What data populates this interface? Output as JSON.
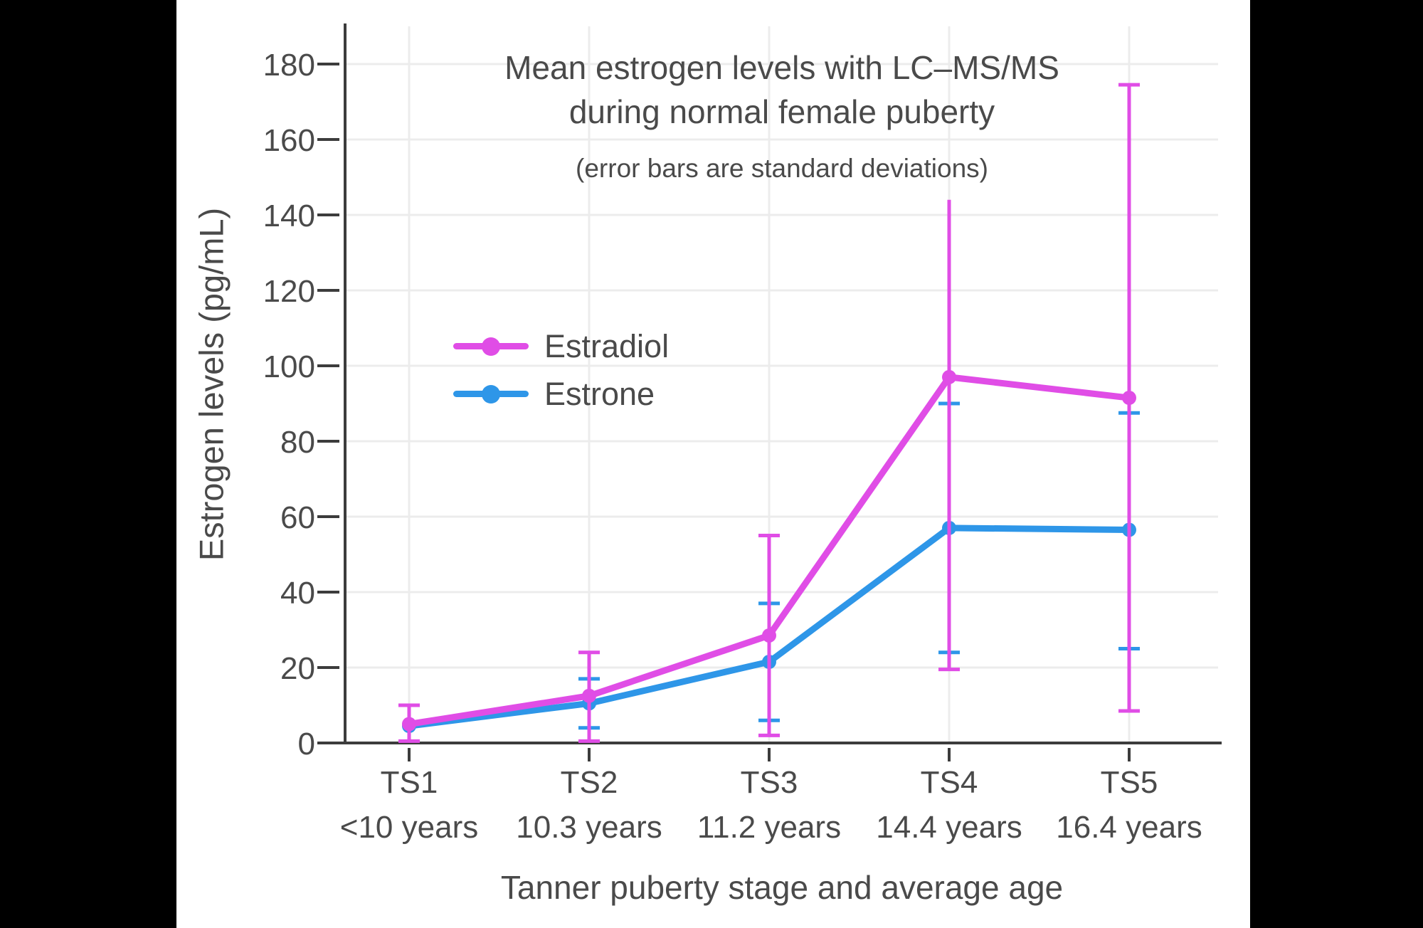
{
  "page": {
    "background_color": "#000000",
    "panel_color": "#ffffff"
  },
  "chart_data": {
    "type": "line",
    "title": "Mean estrogen levels with LC–MS/MS during normal female puberty",
    "title_lines": [
      "Mean estrogen levels with LC–MS/MS",
      "during normal female puberty"
    ],
    "subtitle": "(error bars are standard deviations)",
    "xlabel": "Tanner puberty stage and average age",
    "ylabel": "Estrogen levels (pg/mL)",
    "ylim": [
      0,
      190
    ],
    "yticks": [
      0,
      20,
      40,
      60,
      80,
      100,
      120,
      140,
      160,
      180
    ],
    "categories": [
      "TS1",
      "TS2",
      "TS3",
      "TS4",
      "TS5"
    ],
    "category_sublabels": [
      "<10 years",
      "10.3 years",
      "11.2 years",
      "14.4 years",
      "16.4 years"
    ],
    "grid": true,
    "legend_position": "inside-upper-left",
    "error_bar_meaning": "standard deviations",
    "series": [
      {
        "name": "Estradiol",
        "color": "#E04DE6",
        "values": [
          5,
          12.5,
          28.5,
          97,
          91.5
        ],
        "bar_min": [
          0.5,
          0.5,
          2,
          19.5,
          8.5
        ],
        "bar_max": [
          10,
          24,
          55,
          144,
          174.5
        ],
        "top_cap": [
          true,
          true,
          true,
          false,
          true
        ]
      },
      {
        "name": "Estrone",
        "color": "#2E96E8",
        "values": [
          4.5,
          10.5,
          21.5,
          57,
          56.5
        ],
        "bar_min": [
          null,
          4,
          6,
          24,
          25
        ],
        "bar_max": [
          null,
          17,
          37,
          90,
          87.5
        ],
        "top_cap": [
          true,
          true,
          true,
          true,
          true
        ]
      }
    ],
    "style": {
      "grid_color": "#ececec",
      "axis_color": "#3c3c3c",
      "text_color": "#4a4a4a"
    }
  }
}
